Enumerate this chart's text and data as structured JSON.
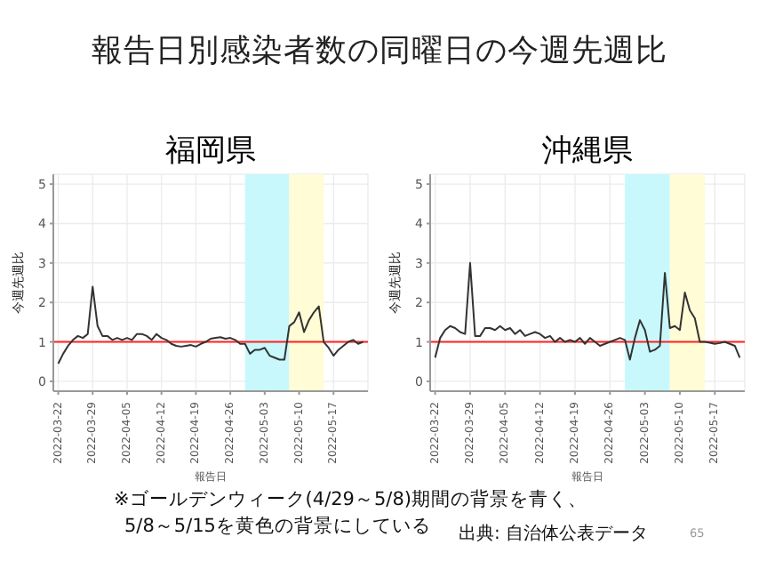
{
  "chart_data": [
    {
      "type": "line",
      "title": "福岡県",
      "xlabel": "報告日",
      "ylabel": "今週先週比",
      "annotations": [
        "報告日別感染者数の同曜日の今週先週比"
      ],
      "xlim": [
        "2022-03-21",
        "2022-05-24"
      ],
      "xticks": [
        "2022-03-22",
        "2022-03-29",
        "2022-04-05",
        "2022-04-12",
        "2022-04-19",
        "2022-04-26",
        "2022-05-03",
        "2022-05-10",
        "2022-05-17"
      ],
      "ylim": [
        -0.25,
        5.25
      ],
      "yticks": [
        0,
        1,
        2,
        3,
        4,
        5
      ],
      "grid": true,
      "marker": "none",
      "line_style": "solid",
      "ref_lines": [
        {
          "axis": "y",
          "value": 1,
          "color": "#ff2020"
        }
      ],
      "bands": [
        {
          "axis": "x",
          "from": "2022-04-29",
          "to": "2022-05-08",
          "color": "#c8f8fc"
        },
        {
          "axis": "x",
          "from": "2022-05-08",
          "to": "2022-05-15",
          "color": "#fffcd6"
        }
      ],
      "series": [
        {
          "color": "#333333",
          "x": [
            "2022-03-22",
            "2022-03-23",
            "2022-03-24",
            "2022-03-25",
            "2022-03-26",
            "2022-03-27",
            "2022-03-28",
            "2022-03-29",
            "2022-03-30",
            "2022-03-31",
            "2022-04-01",
            "2022-04-02",
            "2022-04-03",
            "2022-04-04",
            "2022-04-05",
            "2022-04-06",
            "2022-04-07",
            "2022-04-08",
            "2022-04-09",
            "2022-04-10",
            "2022-04-11",
            "2022-04-12",
            "2022-04-13",
            "2022-04-14",
            "2022-04-15",
            "2022-04-16",
            "2022-04-17",
            "2022-04-18",
            "2022-04-19",
            "2022-04-20",
            "2022-04-21",
            "2022-04-22",
            "2022-04-23",
            "2022-04-24",
            "2022-04-25",
            "2022-04-26",
            "2022-04-27",
            "2022-04-28",
            "2022-04-29",
            "2022-04-30",
            "2022-05-01",
            "2022-05-02",
            "2022-05-03",
            "2022-05-04",
            "2022-05-05",
            "2022-05-06",
            "2022-05-07",
            "2022-05-08",
            "2022-05-09",
            "2022-05-10",
            "2022-05-11",
            "2022-05-12",
            "2022-05-13",
            "2022-05-14",
            "2022-05-15",
            "2022-05-16",
            "2022-05-17",
            "2022-05-18",
            "2022-05-19",
            "2022-05-20",
            "2022-05-21",
            "2022-05-22",
            "2022-05-23"
          ],
          "values": [
            0.45,
            0.7,
            0.9,
            1.05,
            1.15,
            1.1,
            1.2,
            2.4,
            1.4,
            1.15,
            1.15,
            1.05,
            1.1,
            1.05,
            1.1,
            1.05,
            1.2,
            1.2,
            1.15,
            1.05,
            1.2,
            1.1,
            1.05,
            0.95,
            0.9,
            0.88,
            0.9,
            0.92,
            0.88,
            0.95,
            1.0,
            1.08,
            1.1,
            1.12,
            1.08,
            1.1,
            1.05,
            0.95,
            0.95,
            0.7,
            0.8,
            0.8,
            0.85,
            0.65,
            0.6,
            0.55,
            0.55,
            1.4,
            1.5,
            1.75,
            1.25,
            1.55,
            1.75,
            1.9,
            1.0,
            0.85,
            0.65,
            0.8,
            0.9,
            1.0,
            1.05,
            0.95,
            1.0
          ]
        }
      ]
    },
    {
      "type": "line",
      "title": "沖縄県",
      "xlabel": "報告日",
      "ylabel": "今週先週比",
      "annotations": [
        "※ゴールデンウィーク(4/29～5/8)期間の背景を青く、",
        "5/8～5/15を黄色の背景にしている",
        "出典: 自治体公表データ",
        "65"
      ],
      "xlim": [
        "2022-03-21",
        "2022-05-23"
      ],
      "xticks": [
        "2022-03-22",
        "2022-03-29",
        "2022-04-05",
        "2022-04-12",
        "2022-04-19",
        "2022-04-26",
        "2022-05-03",
        "2022-05-10",
        "2022-05-17"
      ],
      "ylim": [
        -0.25,
        5.25
      ],
      "yticks": [
        0,
        1,
        2,
        3,
        4,
        5
      ],
      "grid": true,
      "marker": "none",
      "line_style": "solid",
      "ref_lines": [
        {
          "axis": "y",
          "value": 1,
          "color": "#ff2020"
        }
      ],
      "bands": [
        {
          "axis": "x",
          "from": "2022-04-29",
          "to": "2022-05-08",
          "color": "#c8f8fc"
        },
        {
          "axis": "x",
          "from": "2022-05-08",
          "to": "2022-05-15",
          "color": "#fffcd6"
        }
      ],
      "series": [
        {
          "color": "#333333",
          "x": [
            "2022-03-22",
            "2022-03-23",
            "2022-03-24",
            "2022-03-25",
            "2022-03-26",
            "2022-03-27",
            "2022-03-28",
            "2022-03-29",
            "2022-03-30",
            "2022-03-31",
            "2022-04-01",
            "2022-04-02",
            "2022-04-03",
            "2022-04-04",
            "2022-04-05",
            "2022-04-06",
            "2022-04-07",
            "2022-04-08",
            "2022-04-09",
            "2022-04-10",
            "2022-04-11",
            "2022-04-12",
            "2022-04-13",
            "2022-04-14",
            "2022-04-15",
            "2022-04-16",
            "2022-04-17",
            "2022-04-18",
            "2022-04-19",
            "2022-04-20",
            "2022-04-21",
            "2022-04-22",
            "2022-04-23",
            "2022-04-24",
            "2022-04-25",
            "2022-04-26",
            "2022-04-27",
            "2022-04-28",
            "2022-04-29",
            "2022-04-30",
            "2022-05-01",
            "2022-05-02",
            "2022-05-03",
            "2022-05-04",
            "2022-05-05",
            "2022-05-06",
            "2022-05-07",
            "2022-05-08",
            "2022-05-09",
            "2022-05-10",
            "2022-05-11",
            "2022-05-12",
            "2022-05-13",
            "2022-05-14",
            "2022-05-15",
            "2022-05-16",
            "2022-05-17",
            "2022-05-18",
            "2022-05-19",
            "2022-05-20",
            "2022-05-21",
            "2022-05-22"
          ],
          "values": [
            0.6,
            1.1,
            1.3,
            1.4,
            1.35,
            1.25,
            1.2,
            3.0,
            1.15,
            1.15,
            1.35,
            1.35,
            1.3,
            1.4,
            1.3,
            1.35,
            1.2,
            1.3,
            1.15,
            1.2,
            1.25,
            1.2,
            1.1,
            1.15,
            1.0,
            1.1,
            1.0,
            1.05,
            1.0,
            1.1,
            0.95,
            1.1,
            1.0,
            0.9,
            0.95,
            1.0,
            1.05,
            1.1,
            1.05,
            0.55,
            1.1,
            1.55,
            1.3,
            0.75,
            0.8,
            0.9,
            2.75,
            1.35,
            1.4,
            1.3,
            2.25,
            1.8,
            1.6,
            1.0,
            1.0,
            0.98,
            0.95,
            0.97,
            1.0,
            0.95,
            0.9,
            0.6
          ]
        }
      ]
    }
  ]
}
